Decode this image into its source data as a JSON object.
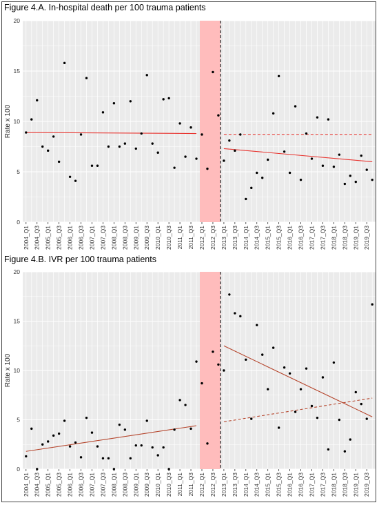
{
  "chart_data": [
    {
      "type": "scatter",
      "title": "Figure 4.A. In-hospital death per 100 trauma patients",
      "ylabel": "Rate x 100",
      "xlabel": "",
      "ylim": [
        0,
        20
      ],
      "yticks": [
        0,
        5,
        10,
        15,
        20
      ],
      "categories": [
        "2004_Q1",
        "2004_Q2",
        "2004_Q3",
        "2004_Q4",
        "2005_Q1",
        "2005_Q2",
        "2005_Q3",
        "2005_Q4",
        "2006_Q1",
        "2006_Q2",
        "2006_Q3",
        "2006_Q4",
        "2007_Q1",
        "2007_Q2",
        "2007_Q3",
        "2007_Q4",
        "2008_Q1",
        "2008_Q2",
        "2008_Q3",
        "2008_Q4",
        "2009_Q1",
        "2009_Q2",
        "2009_Q3",
        "2009_Q4",
        "2010_Q1",
        "2010_Q2",
        "2010_Q3",
        "2010_Q4",
        "2011_Q1",
        "2011_Q2",
        "2011_Q3",
        "2011_Q4",
        "2012_Q1",
        "2012_Q2",
        "2012_Q3",
        "2012_Q4",
        "2013_Q1",
        "2013_Q2",
        "2013_Q3",
        "2013_Q4",
        "2014_Q1",
        "2014_Q2",
        "2014_Q3",
        "2014_Q4",
        "2015_Q1",
        "2015_Q2",
        "2015_Q3",
        "2015_Q4",
        "2016_Q1",
        "2016_Q2",
        "2016_Q3",
        "2016_Q4",
        "2017_Q1",
        "2017_Q2",
        "2017_Q3",
        "2017_Q4",
        "2018_Q1",
        "2018_Q2",
        "2018_Q3",
        "2018_Q4",
        "2019_Q1",
        "2019_Q2",
        "2019_Q3",
        "2019_Q4"
      ],
      "tick_labels": [
        "2004_Q1",
        "2004_Q3",
        "2005_Q1",
        "2005_Q3",
        "2006_Q1",
        "2006_Q3",
        "2007_Q1",
        "2007_Q3",
        "2008_Q1",
        "2008_Q3",
        "2009_Q1",
        "2009_Q3",
        "2010_Q1",
        "2010_Q3",
        "2011_Q1",
        "2011_Q3",
        "2012_Q1",
        "2012_Q3",
        "2013_Q1",
        "2013_Q3",
        "2014_Q1",
        "2014_Q3",
        "2015_Q1",
        "2015_Q3",
        "2016_Q1",
        "2016_Q3",
        "2017_Q1",
        "2017_Q3",
        "2018_Q1",
        "2018_Q3",
        "2019_Q1",
        "2019_Q3"
      ],
      "values": [
        8.9,
        10.2,
        12.1,
        7.5,
        7.1,
        8.5,
        6.0,
        15.8,
        4.5,
        4.1,
        8.7,
        14.3,
        5.6,
        5.6,
        10.9,
        7.5,
        11.8,
        7.5,
        7.8,
        12.0,
        7.3,
        8.8,
        14.6,
        7.8,
        6.9,
        12.2,
        12.3,
        5.4,
        9.8,
        6.5,
        9.4,
        6.3,
        8.7,
        5.3,
        14.9,
        10.6,
        6.1,
        8.1,
        7.1,
        8.7,
        2.3,
        3.4,
        4.9,
        4.4,
        6.2,
        10.8,
        14.5,
        7.0,
        4.9,
        11.5,
        4.2,
        8.8,
        6.3,
        10.4,
        5.6,
        10.2,
        5.5,
        6.7,
        3.8,
        4.6,
        4.0,
        6.6,
        5.2,
        4.2
      ],
      "intervention_period": [
        "2012_Q1",
        "2012_Q4"
      ],
      "trend_lines": [
        {
          "style": "solid",
          "x": [
            "2004_Q1",
            "2011_Q4"
          ],
          "y": [
            8.9,
            8.8
          ]
        },
        {
          "style": "solid",
          "x": [
            "2013_Q1",
            "2019_Q4"
          ],
          "y": [
            7.3,
            6.0
          ]
        },
        {
          "style": "dashed",
          "x": [
            "2013_Q1",
            "2019_Q4"
          ],
          "y": [
            8.7,
            8.7
          ]
        }
      ],
      "colors": {
        "panel": "#ebebeb",
        "grid": "#ffffff",
        "band": "#ffbcbc",
        "trend": "#e8342f",
        "point": "#000000"
      }
    },
    {
      "type": "scatter",
      "title": "Figure 4.B. IVR per 100 trauma patients",
      "ylabel": "Rate x 100",
      "xlabel": "",
      "ylim": [
        0,
        20
      ],
      "yticks": [
        0,
        5,
        10,
        15,
        20
      ],
      "categories": [
        "2004_Q1",
        "2004_Q2",
        "2004_Q3",
        "2004_Q4",
        "2005_Q1",
        "2005_Q2",
        "2005_Q3",
        "2005_Q4",
        "2006_Q1",
        "2006_Q2",
        "2006_Q3",
        "2006_Q4",
        "2007_Q1",
        "2007_Q2",
        "2007_Q3",
        "2007_Q4",
        "2008_Q1",
        "2008_Q2",
        "2008_Q3",
        "2008_Q4",
        "2009_Q1",
        "2009_Q2",
        "2009_Q3",
        "2009_Q4",
        "2010_Q1",
        "2010_Q2",
        "2010_Q3",
        "2010_Q4",
        "2011_Q1",
        "2011_Q2",
        "2011_Q3",
        "2011_Q4",
        "2012_Q1",
        "2012_Q2",
        "2012_Q3",
        "2012_Q4",
        "2013_Q1",
        "2013_Q2",
        "2013_Q3",
        "2013_Q4",
        "2014_Q1",
        "2014_Q2",
        "2014_Q3",
        "2014_Q4",
        "2015_Q1",
        "2015_Q2",
        "2015_Q3",
        "2015_Q4",
        "2016_Q1",
        "2016_Q2",
        "2016_Q3",
        "2016_Q4",
        "2017_Q1",
        "2017_Q2",
        "2017_Q3",
        "2017_Q4",
        "2018_Q1",
        "2018_Q2",
        "2018_Q3",
        "2018_Q4",
        "2019_Q1",
        "2019_Q2",
        "2019_Q3",
        "2019_Q4"
      ],
      "tick_labels": [
        "2004_Q1",
        "2004_Q3",
        "2005_Q1",
        "2005_Q3",
        "2006_Q1",
        "2006_Q3",
        "2007_Q1",
        "2007_Q3",
        "2008_Q1",
        "2008_Q3",
        "2009_Q1",
        "2009_Q3",
        "2010_Q1",
        "2010_Q3",
        "2011_Q1",
        "2011_Q3",
        "2012_Q1",
        "2012_Q3",
        "2013_Q1",
        "2013_Q3",
        "2014_Q1",
        "2014_Q3",
        "2015_Q1",
        "2015_Q3",
        "2016_Q1",
        "2016_Q3",
        "2017_Q1",
        "2017_Q3",
        "2018_Q1",
        "2018_Q3",
        "2019_Q1",
        "2019_Q3"
      ],
      "values": [
        1.3,
        4.1,
        0.0,
        2.5,
        2.8,
        3.4,
        3.6,
        4.9,
        2.3,
        2.7,
        1.2,
        5.2,
        3.7,
        2.3,
        1.1,
        1.1,
        0.0,
        4.5,
        4.0,
        1.1,
        2.4,
        2.4,
        4.9,
        2.2,
        1.4,
        2.2,
        0.0,
        4.0,
        7.0,
        6.5,
        4.1,
        10.9,
        8.7,
        2.6,
        11.9,
        10.6,
        10.0,
        17.7,
        15.8,
        15.5,
        11.1,
        5.1,
        14.6,
        11.6,
        8.1,
        12.3,
        4.2,
        10.3,
        9.7,
        5.8,
        8.1,
        10.2,
        6.4,
        5.2,
        9.3,
        2.0,
        10.8,
        5.0,
        1.8,
        3.0,
        7.8,
        6.6,
        5.1,
        16.7
      ],
      "intervention_period": [
        "2012_Q1",
        "2012_Q4"
      ],
      "trend_lines": [
        {
          "style": "solid",
          "x": [
            "2004_Q1",
            "2011_Q4"
          ],
          "y": [
            1.8,
            4.4
          ]
        },
        {
          "style": "solid",
          "x": [
            "2013_Q1",
            "2019_Q4"
          ],
          "y": [
            12.5,
            5.3
          ]
        },
        {
          "style": "dashed",
          "x": [
            "2013_Q1",
            "2019_Q4"
          ],
          "y": [
            4.8,
            7.2
          ]
        }
      ],
      "colors": {
        "panel": "#ebebeb",
        "grid": "#ffffff",
        "band": "#ffbcbc",
        "trend": "#b5452c",
        "point": "#000000"
      }
    }
  ]
}
